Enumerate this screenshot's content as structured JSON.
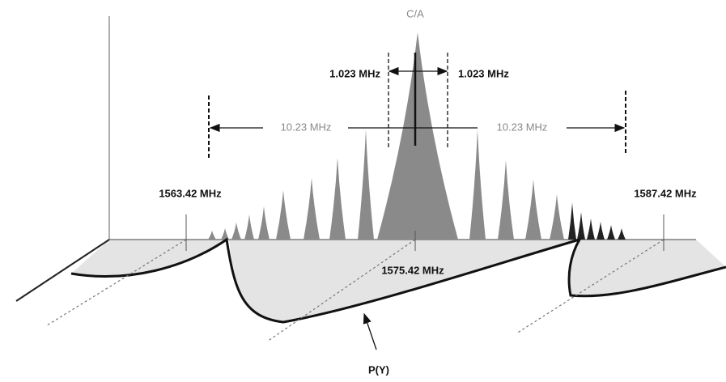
{
  "spectrum": {
    "ca_label": "C/A",
    "ca_half_width": [
      "1.023 MHz",
      "1.023 MHz"
    ],
    "p_half_width": [
      "10.23 MHz",
      "10.23 MHz"
    ],
    "frequencies": [
      "1563.42 MHz",
      "1575.42 MHz",
      "1587.42 MHz"
    ],
    "py_label": "P(Y)"
  }
}
